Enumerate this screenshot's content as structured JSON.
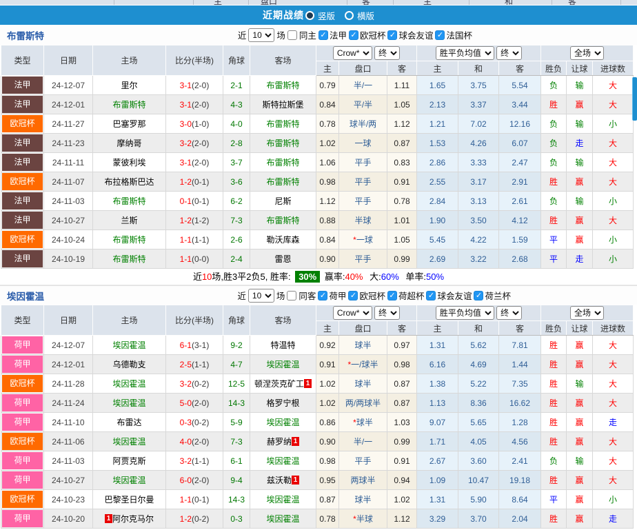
{
  "top_strip": {
    "labels": [
      "主",
      "盘口",
      "客",
      "主",
      "和",
      "客"
    ]
  },
  "title_bar": {
    "title": "近期战绩",
    "options": [
      {
        "label": "竖版",
        "selected": true
      },
      {
        "label": "横版",
        "selected": false
      }
    ]
  },
  "table_header": {
    "type": "类型",
    "date": "日期",
    "home": "主场",
    "score": "比分(半场)",
    "corner": "角球",
    "away": "客场",
    "crow_select": "Crow*",
    "final_select": "终",
    "mean_select": "胜平负均值",
    "final_select2": "终",
    "scope_select": "全场",
    "crow_home": "主",
    "handicap": "盘口",
    "crow_away": "客",
    "mean_home": "主",
    "mean_draw": "和",
    "mean_away": "客",
    "result": "胜负",
    "handicap_result": "让球",
    "goals": "进球数"
  },
  "league_colors": {
    "法甲": "#6b4441",
    "欧冠杯": "#ff6a00",
    "荷甲": "#ff63a5"
  },
  "result_colors": {
    "胜": "#ff0000",
    "负": "#008000",
    "平": "#0000ff",
    "赢": "#ff0000",
    "输": "#008000",
    "走": "#0000ff",
    "大": "#ff0000",
    "小": "#008000"
  },
  "sections": [
    {
      "team": "布雷斯特",
      "filter": {
        "near_label": "近",
        "count": "10",
        "games_label": "场",
        "same_label": "同主",
        "same_checked": false,
        "leagues": [
          {
            "label": "法甲",
            "checked": true
          },
          {
            "label": "欧冠杯",
            "checked": true
          },
          {
            "label": "球会友谊",
            "checked": true
          },
          {
            "label": "法国杯",
            "checked": true
          }
        ]
      },
      "rows": [
        {
          "type": "法甲",
          "date": "24-12-07",
          "home": "里尔",
          "home_focus": false,
          "home_badge": "",
          "score": "3-1",
          "half": "(2-0)",
          "corner": "2-1",
          "away": "布雷斯特",
          "away_focus": true,
          "away_badge": "",
          "crow_home": "0.79",
          "handicap": "半/一",
          "crow_away": "1.11",
          "mean_home": "1.65",
          "mean_draw": "3.75",
          "mean_away": "5.54",
          "result": "负",
          "handicap_result": "输",
          "goals": "大"
        },
        {
          "type": "法甲",
          "date": "24-12-01",
          "home": "布雷斯特",
          "home_focus": true,
          "home_badge": "",
          "score": "3-1",
          "half": "(2-0)",
          "corner": "4-3",
          "away": "斯特拉斯堡",
          "away_focus": false,
          "away_badge": "",
          "crow_home": "0.84",
          "handicap": "平/半",
          "crow_away": "1.05",
          "mean_home": "2.13",
          "mean_draw": "3.37",
          "mean_away": "3.44",
          "result": "胜",
          "handicap_result": "赢",
          "goals": "大"
        },
        {
          "type": "欧冠杯",
          "date": "24-11-27",
          "home": "巴塞罗那",
          "home_focus": false,
          "home_badge": "",
          "score": "3-0",
          "half": "(1-0)",
          "corner": "4-0",
          "away": "布雷斯特",
          "away_focus": true,
          "away_badge": "",
          "crow_home": "0.78",
          "handicap": "球半/两",
          "crow_away": "1.12",
          "mean_home": "1.21",
          "mean_draw": "7.02",
          "mean_away": "12.16",
          "result": "负",
          "handicap_result": "输",
          "goals": "小"
        },
        {
          "type": "法甲",
          "date": "24-11-23",
          "home": "摩纳哥",
          "home_focus": false,
          "home_badge": "",
          "score": "3-2",
          "half": "(2-0)",
          "corner": "2-8",
          "away": "布雷斯特",
          "away_focus": true,
          "away_badge": "",
          "crow_home": "1.02",
          "handicap": "一球",
          "crow_away": "0.87",
          "mean_home": "1.53",
          "mean_draw": "4.26",
          "mean_away": "6.07",
          "result": "负",
          "handicap_result": "走",
          "goals": "大"
        },
        {
          "type": "法甲",
          "date": "24-11-11",
          "home": "蒙彼利埃",
          "home_focus": false,
          "home_badge": "",
          "score": "3-1",
          "half": "(2-0)",
          "corner": "3-7",
          "away": "布雷斯特",
          "away_focus": true,
          "away_badge": "",
          "crow_home": "1.06",
          "handicap": "平手",
          "crow_away": "0.83",
          "mean_home": "2.86",
          "mean_draw": "3.33",
          "mean_away": "2.47",
          "result": "负",
          "handicap_result": "输",
          "goals": "大"
        },
        {
          "type": "欧冠杯",
          "date": "24-11-07",
          "home": "布拉格斯巴达",
          "home_focus": false,
          "home_badge": "",
          "score": "1-2",
          "half": "(0-1)",
          "corner": "3-6",
          "away": "布雷斯特",
          "away_focus": true,
          "away_badge": "",
          "crow_home": "0.98",
          "handicap": "平手",
          "crow_away": "0.91",
          "mean_home": "2.55",
          "mean_draw": "3.17",
          "mean_away": "2.91",
          "result": "胜",
          "handicap_result": "赢",
          "goals": "大"
        },
        {
          "type": "法甲",
          "date": "24-11-03",
          "home": "布雷斯特",
          "home_focus": true,
          "home_badge": "",
          "score": "0-1",
          "half": "(0-1)",
          "corner": "6-2",
          "away": "尼斯",
          "away_focus": false,
          "away_badge": "",
          "crow_home": "1.12",
          "handicap": "平手",
          "crow_away": "0.78",
          "mean_home": "2.84",
          "mean_draw": "3.13",
          "mean_away": "2.61",
          "result": "负",
          "handicap_result": "输",
          "goals": "小"
        },
        {
          "type": "法甲",
          "date": "24-10-27",
          "home": "兰斯",
          "home_focus": false,
          "home_badge": "",
          "score": "1-2",
          "half": "(1-2)",
          "corner": "7-3",
          "away": "布雷斯特",
          "away_focus": true,
          "away_badge": "",
          "crow_home": "0.88",
          "handicap": "半球",
          "crow_away": "1.01",
          "mean_home": "1.90",
          "mean_draw": "3.50",
          "mean_away": "4.12",
          "result": "胜",
          "handicap_result": "赢",
          "goals": "大"
        },
        {
          "type": "欧冠杯",
          "date": "24-10-24",
          "home": "布雷斯特",
          "home_focus": true,
          "home_badge": "",
          "score": "1-1",
          "half": "(1-1)",
          "corner": "2-6",
          "away": "勒沃库森",
          "away_focus": false,
          "away_badge": "",
          "crow_home": "0.84",
          "handicap": "*一球",
          "crow_away": "1.05",
          "mean_home": "5.45",
          "mean_draw": "4.22",
          "mean_away": "1.59",
          "result": "平",
          "handicap_result": "赢",
          "goals": "小"
        },
        {
          "type": "法甲",
          "date": "24-10-19",
          "home": "布雷斯特",
          "home_focus": true,
          "home_badge": "",
          "score": "1-1",
          "half": "(0-0)",
          "corner": "2-4",
          "away": "雷恩",
          "away_focus": false,
          "away_badge": "",
          "crow_home": "0.90",
          "handicap": "平手",
          "crow_away": "0.99",
          "mean_home": "2.69",
          "mean_draw": "3.22",
          "mean_away": "2.68",
          "result": "平",
          "handicap_result": "走",
          "goals": "小"
        }
      ],
      "summary": {
        "pre": "近",
        "count": "10",
        "mid": "场,胜3平2负5, 胜率:",
        "win_rate": "30%",
        "odds_label": "赢率:",
        "odds_rate": "40%",
        "big_label": "大:",
        "big_rate": "60%",
        "single_label": "单率:",
        "single_rate": "50%"
      }
    },
    {
      "team": "埃因霍温",
      "filter": {
        "near_label": "近",
        "count": "10",
        "games_label": "场",
        "same_label": "同客",
        "same_checked": false,
        "leagues": [
          {
            "label": "荷甲",
            "checked": true
          },
          {
            "label": "欧冠杯",
            "checked": true
          },
          {
            "label": "荷超杯",
            "checked": true
          },
          {
            "label": "球会友谊",
            "checked": true
          },
          {
            "label": "荷兰杯",
            "checked": true
          }
        ]
      },
      "rows": [
        {
          "type": "荷甲",
          "date": "24-12-07",
          "home": "埃因霍温",
          "home_focus": true,
          "home_badge": "",
          "score": "6-1",
          "half": "(3-1)",
          "corner": "9-2",
          "away": "特温特",
          "away_focus": false,
          "away_badge": "",
          "crow_home": "0.92",
          "handicap": "球半",
          "crow_away": "0.97",
          "mean_home": "1.31",
          "mean_draw": "5.62",
          "mean_away": "7.81",
          "result": "胜",
          "handicap_result": "赢",
          "goals": "大"
        },
        {
          "type": "荷甲",
          "date": "24-12-01",
          "home": "乌德勒支",
          "home_focus": false,
          "home_badge": "",
          "score": "2-5",
          "half": "(1-1)",
          "corner": "4-7",
          "away": "埃因霍温",
          "away_focus": true,
          "away_badge": "",
          "crow_home": "0.91",
          "handicap": "*一/球半",
          "crow_away": "0.98",
          "mean_home": "6.16",
          "mean_draw": "4.69",
          "mean_away": "1.44",
          "result": "胜",
          "handicap_result": "赢",
          "goals": "大"
        },
        {
          "type": "欧冠杯",
          "date": "24-11-28",
          "home": "埃因霍温",
          "home_focus": true,
          "home_badge": "",
          "score": "3-2",
          "half": "(0-2)",
          "corner": "12-5",
          "away": "顿涅茨克矿工",
          "away_focus": false,
          "away_badge": "1",
          "crow_home": "1.02",
          "handicap": "球半",
          "crow_away": "0.87",
          "mean_home": "1.38",
          "mean_draw": "5.22",
          "mean_away": "7.35",
          "result": "胜",
          "handicap_result": "输",
          "goals": "大"
        },
        {
          "type": "荷甲",
          "date": "24-11-24",
          "home": "埃因霍温",
          "home_focus": true,
          "home_badge": "",
          "score": "5-0",
          "half": "(2-0)",
          "corner": "14-3",
          "away": "格罗宁根",
          "away_focus": false,
          "away_badge": "",
          "crow_home": "1.02",
          "handicap": "两/两球半",
          "crow_away": "0.87",
          "mean_home": "1.13",
          "mean_draw": "8.36",
          "mean_away": "16.62",
          "result": "胜",
          "handicap_result": "赢",
          "goals": "大"
        },
        {
          "type": "荷甲",
          "date": "24-11-10",
          "home": "布雷达",
          "home_focus": false,
          "home_badge": "",
          "score": "0-3",
          "half": "(0-2)",
          "corner": "5-9",
          "away": "埃因霍温",
          "away_focus": true,
          "away_badge": "",
          "crow_home": "0.86",
          "handicap": "*球半",
          "crow_away": "1.03",
          "mean_home": "9.07",
          "mean_draw": "5.65",
          "mean_away": "1.28",
          "result": "胜",
          "handicap_result": "赢",
          "goals": "走"
        },
        {
          "type": "欧冠杯",
          "date": "24-11-06",
          "home": "埃因霍温",
          "home_focus": true,
          "home_badge": "",
          "score": "4-0",
          "half": "(2-0)",
          "corner": "7-3",
          "away": "赫罗纳",
          "away_focus": false,
          "away_badge": "1",
          "crow_home": "0.90",
          "handicap": "半/一",
          "crow_away": "0.99",
          "mean_home": "1.71",
          "mean_draw": "4.05",
          "mean_away": "4.56",
          "result": "胜",
          "handicap_result": "赢",
          "goals": "大"
        },
        {
          "type": "荷甲",
          "date": "24-11-03",
          "home": "阿贾克斯",
          "home_focus": false,
          "home_badge": "",
          "score": "3-2",
          "half": "(1-1)",
          "corner": "6-1",
          "away": "埃因霍温",
          "away_focus": true,
          "away_badge": "",
          "crow_home": "0.98",
          "handicap": "平手",
          "crow_away": "0.91",
          "mean_home": "2.67",
          "mean_draw": "3.60",
          "mean_away": "2.41",
          "result": "负",
          "handicap_result": "输",
          "goals": "大"
        },
        {
          "type": "荷甲",
          "date": "24-10-27",
          "home": "埃因霍温",
          "home_focus": true,
          "home_badge": "",
          "score": "6-0",
          "half": "(2-0)",
          "corner": "9-4",
          "away": "兹沃勒",
          "away_focus": false,
          "away_badge": "1",
          "crow_home": "0.95",
          "handicap": "两球半",
          "crow_away": "0.94",
          "mean_home": "1.09",
          "mean_draw": "10.47",
          "mean_away": "19.18",
          "result": "胜",
          "handicap_result": "赢",
          "goals": "大"
        },
        {
          "type": "欧冠杯",
          "date": "24-10-23",
          "home": "巴黎圣日尔曼",
          "home_focus": false,
          "home_badge": "",
          "score": "1-1",
          "half": "(0-1)",
          "corner": "14-3",
          "away": "埃因霍温",
          "away_focus": true,
          "away_badge": "",
          "crow_home": "0.87",
          "handicap": "球半",
          "crow_away": "1.02",
          "mean_home": "1.31",
          "mean_draw": "5.90",
          "mean_away": "8.64",
          "result": "平",
          "handicap_result": "赢",
          "goals": "小"
        },
        {
          "type": "荷甲",
          "date": "24-10-20",
          "home": "阿尔克马尔",
          "home_focus": false,
          "home_badge": "1",
          "score": "1-2",
          "half": "(0-2)",
          "corner": "0-3",
          "away": "埃因霍温",
          "away_focus": true,
          "away_badge": "",
          "crow_home": "0.78",
          "handicap": "*半球",
          "crow_away": "1.12",
          "mean_home": "3.29",
          "mean_draw": "3.70",
          "mean_away": "2.04",
          "result": "胜",
          "handicap_result": "赢",
          "goals": "走"
        }
      ]
    }
  ]
}
